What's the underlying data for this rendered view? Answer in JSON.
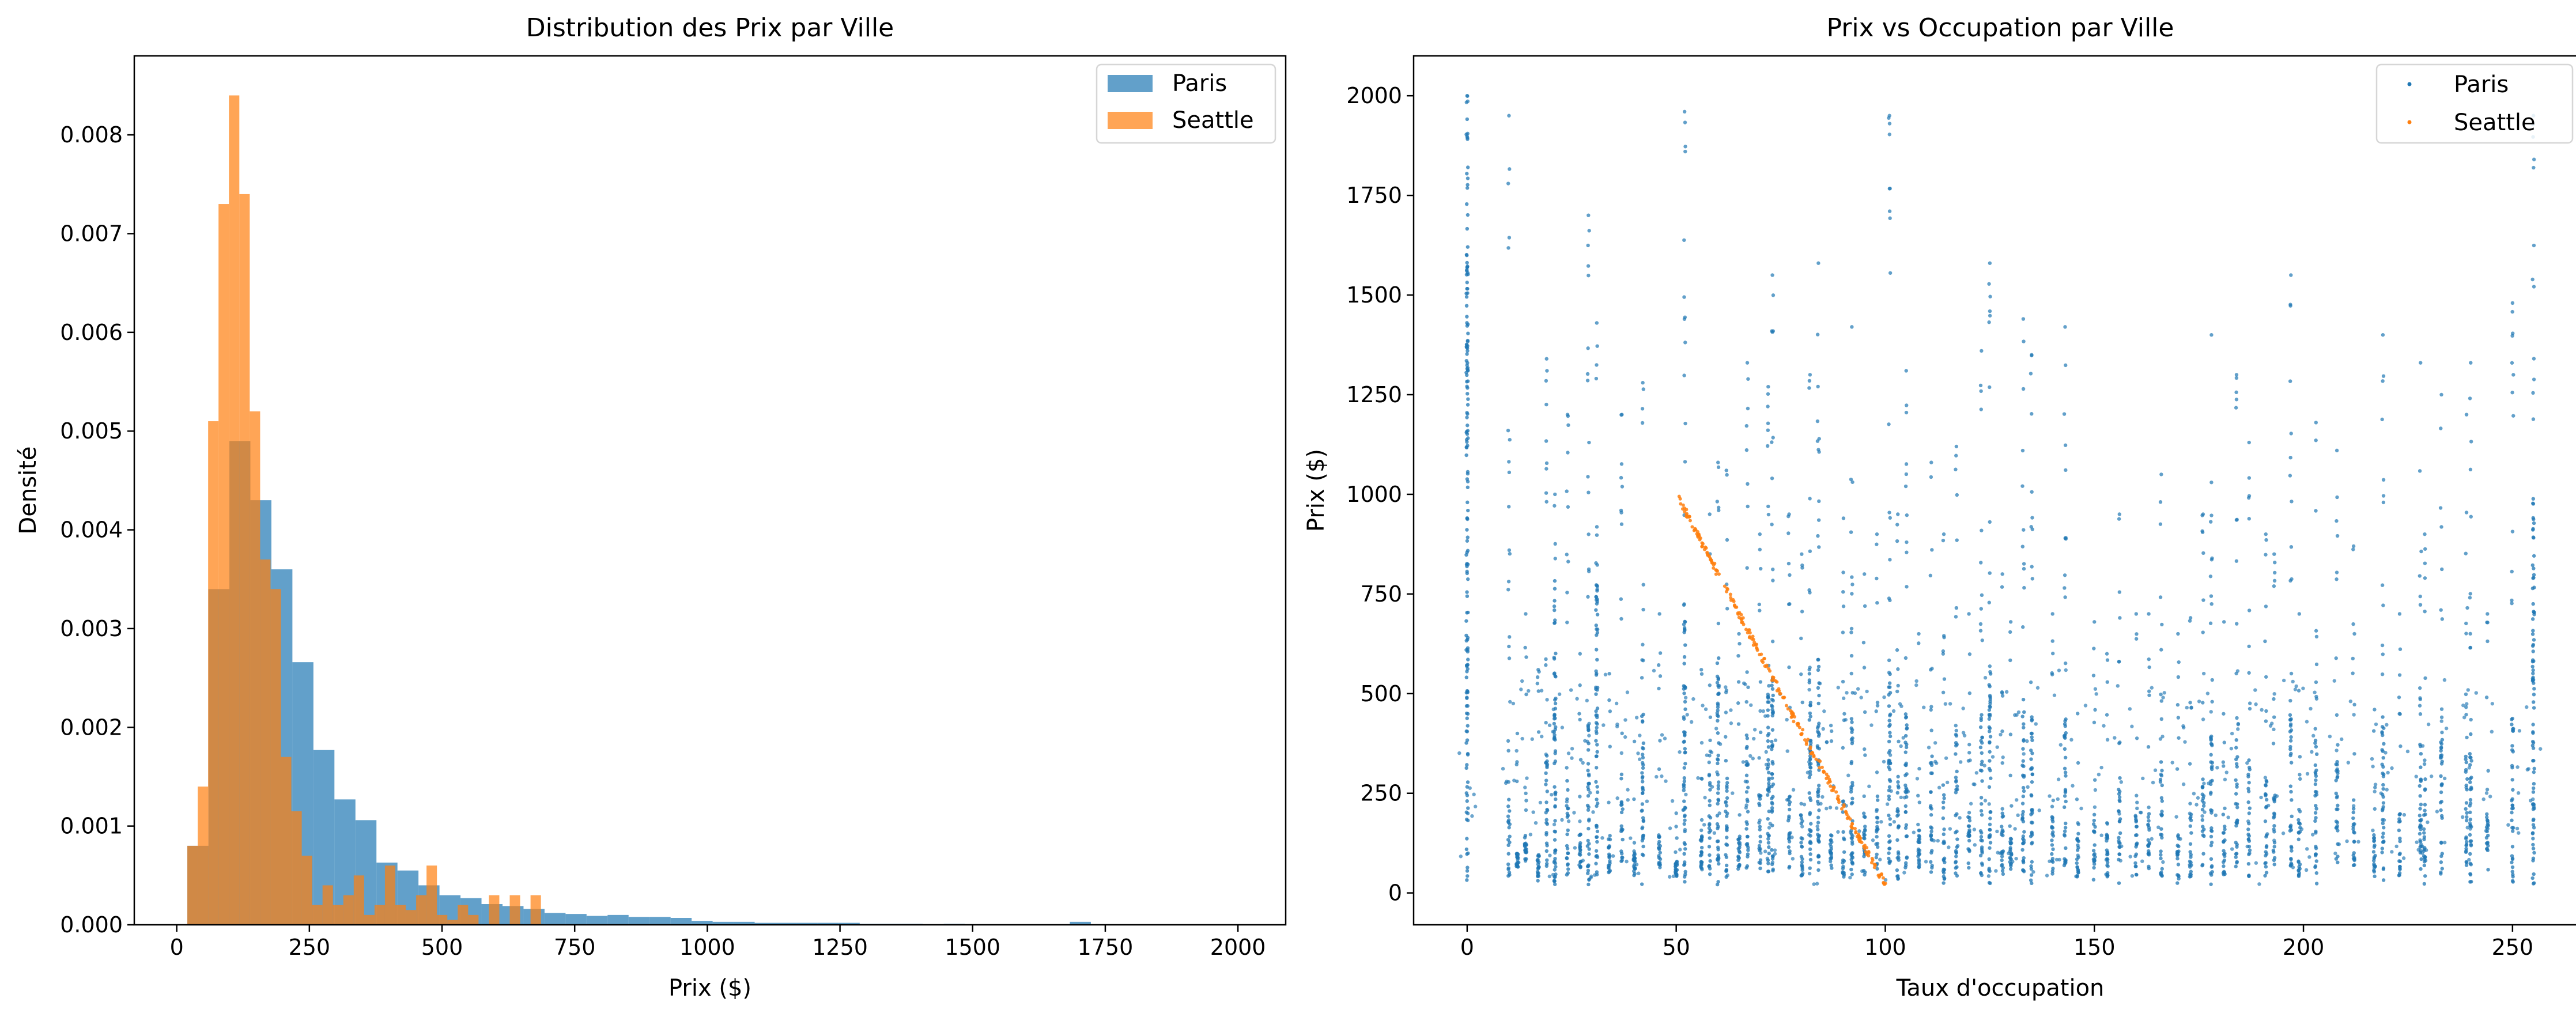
{
  "chart_data": [
    {
      "type": "bar",
      "subtype": "histogram",
      "title": "Distribution des Prix par Ville",
      "xlabel": "Prix ($)",
      "ylabel": "Densité",
      "xlim": [
        -80,
        2090
      ],
      "ylim": [
        0,
        0.0088
      ],
      "xticks": [
        0,
        250,
        500,
        750,
        1000,
        1250,
        1500,
        1750,
        2000
      ],
      "yticks": [
        0.0,
        0.001,
        0.002,
        0.003,
        0.004,
        0.005,
        0.006,
        0.007,
        0.008
      ],
      "ytick_labels": [
        "0.000",
        "0.001",
        "0.002",
        "0.003",
        "0.004",
        "0.005",
        "0.006",
        "0.007",
        "0.008"
      ],
      "legend": {
        "placement": "top-right",
        "entries": [
          "Paris",
          "Seattle"
        ]
      },
      "grid": false,
      "series": [
        {
          "name": "Paris",
          "color": "#1f77b4",
          "bin_start": 20,
          "bin_width": 39.6,
          "values": [
            0.0008,
            0.0034,
            0.0049,
            0.0043,
            0.0036,
            0.00266,
            0.00177,
            0.00127,
            0.00106,
            0.00063,
            0.00055,
            0.0004,
            0.0003,
            0.00027,
            0.00021,
            0.00019,
            0.00016,
            0.00012,
            0.00011,
            9e-05,
            0.0001,
            8e-05,
            8e-05,
            7e-05,
            4e-05,
            3e-05,
            3e-05,
            2e-05,
            2e-05,
            2e-05,
            2e-05,
            2e-05,
            1e-05,
            1e-05,
            1e-05,
            5e-06,
            1e-05,
            5e-06,
            5e-06,
            5e-06,
            5e-06,
            5e-06,
            3e-05,
            5e-06,
            5e-06,
            5e-06,
            5e-06,
            5e-06,
            5e-06,
            5e-06
          ]
        },
        {
          "name": "Seattle",
          "color": "#ff7f0e",
          "bin_start": 20,
          "bin_width": 19.6,
          "values": [
            0.0008,
            0.0014,
            0.0051,
            0.0073,
            0.0084,
            0.0074,
            0.0052,
            0.0037,
            0.0034,
            0.0017,
            0.00115,
            0.0007,
            0.0002,
            0.0004,
            0.0002,
            0.0003,
            0.0005,
            0.0001,
            0.0002,
            0.0006,
            0.0002,
            0.00015,
            0.0003,
            0.0006,
            0.0001,
            5e-05,
            0.0002,
            0.0001,
            0.0,
            0.0003,
            0.0,
            0.0003,
            0.0,
            0.0003,
            0.0,
            0.0,
            0.0,
            0.0,
            0.0,
            0.0,
            0.0,
            0.0,
            0.0,
            0.0,
            0.0,
            0.0,
            0.0,
            0.0,
            0.0,
            0.0
          ]
        }
      ]
    },
    {
      "type": "scatter",
      "title": "Prix vs Occupation par Ville",
      "xlabel": "Taux d'occupation",
      "ylabel": "Prix ($)",
      "xlim": [
        -12.8,
        267.8
      ],
      "ylim": [
        -80,
        2100
      ],
      "xticks": [
        0,
        50,
        100,
        150,
        200,
        250
      ],
      "yticks": [
        0,
        250,
        500,
        750,
        1000,
        1250,
        1500,
        1750,
        2000
      ],
      "legend": {
        "placement": "top-right",
        "entries": [
          "Paris",
          "Seattle"
        ]
      },
      "grid": false,
      "series": [
        {
          "name": "Paris",
          "color": "#1f77b4",
          "stripe_x": [
            0,
            10,
            12,
            14,
            17,
            19,
            21,
            24,
            27,
            29,
            31,
            34,
            37,
            40,
            42,
            46,
            50,
            52,
            56,
            58,
            60,
            62,
            65,
            67,
            70,
            72,
            73,
            77,
            80,
            82,
            84,
            87,
            90,
            92,
            95,
            98,
            101,
            103,
            105,
            108,
            111,
            114,
            117,
            120,
            123,
            125,
            128,
            130,
            133,
            135,
            140,
            143,
            146,
            150,
            153,
            156,
            160,
            163,
            166,
            170,
            173,
            176,
            178,
            181,
            184,
            187,
            191,
            193,
            197,
            199,
            203,
            208,
            212,
            217,
            219,
            223,
            228,
            229,
            233,
            239,
            240,
            244,
            250,
            255
          ],
          "stripe_top": [
            2000,
            1950,
            400,
            700,
            560,
            1340,
            1000,
            1200,
            600,
            1700,
            1430,
            550,
            1200,
            380,
            1280,
            700,
            200,
            1960,
            560,
            950,
            1080,
            1060,
            650,
            1330,
            900,
            1270,
            1550,
            950,
            850,
            1300,
            1580,
            420,
            940,
            1420,
            800,
            900,
            1950,
            950,
            1310,
            650,
            1080,
            900,
            1120,
            700,
            1360,
            1580,
            800,
            680,
            1440,
            1350,
            700,
            1420,
            450,
            680,
            600,
            950,
            700,
            700,
            1050,
            650,
            690,
            950,
            1400,
            680,
            1300,
            1130,
            900,
            850,
            1550,
            700,
            1180,
            1110,
            870,
            460,
            1400,
            700,
            1330,
            900,
            1250,
            1200,
            1330,
            700,
            1480,
            1950
          ],
          "stripe_bottom": [
            15,
            40,
            60,
            80,
            30,
            40,
            20,
            40,
            60,
            20,
            30,
            50,
            60,
            40,
            20,
            60,
            40,
            20,
            50,
            40,
            20,
            40,
            60,
            40,
            60,
            20,
            40,
            60,
            40,
            20,
            40,
            60,
            40,
            20,
            40,
            60,
            30,
            20,
            40,
            60,
            40,
            20,
            40,
            60,
            40,
            20,
            40,
            60,
            40,
            20,
            40,
            60,
            40,
            30,
            40,
            20,
            40,
            60,
            40,
            20,
            40,
            60,
            20,
            40,
            60,
            40,
            20,
            40,
            60,
            40,
            20,
            40,
            60,
            40,
            20,
            40,
            60,
            20,
            40,
            60,
            20,
            40,
            20,
            20
          ],
          "dense_below": [
            1950,
            250,
            100,
            150,
            100,
            350,
            800,
            300,
            150,
            450,
            800,
            150,
            300,
            100,
            450,
            150,
            80,
            700,
            150,
            300,
            600,
            350,
            150,
            400,
            250,
            500,
            550,
            250,
            200,
            550,
            600,
            150,
            250,
            450,
            200,
            250,
            550,
            300,
            450,
            150,
            350,
            300,
            400,
            200,
            450,
            550,
            200,
            150,
            500,
            450,
            200,
            450,
            150,
            200,
            150,
            300,
            200,
            200,
            350,
            150,
            200,
            300,
            400,
            200,
            400,
            350,
            300,
            250,
            450,
            200,
            400,
            350,
            250,
            150,
            450,
            200,
            400,
            300,
            400,
            350,
            400,
            200,
            450,
            1000
          ]
        },
        {
          "name": "Seattle",
          "color": "#ff7f0e",
          "line_points": [
            [
              50,
              1000
            ],
            [
              62,
              760
            ],
            [
              75,
              500
            ],
            [
              88,
              250
            ],
            [
              100,
              20
            ]
          ]
        }
      ]
    }
  ]
}
